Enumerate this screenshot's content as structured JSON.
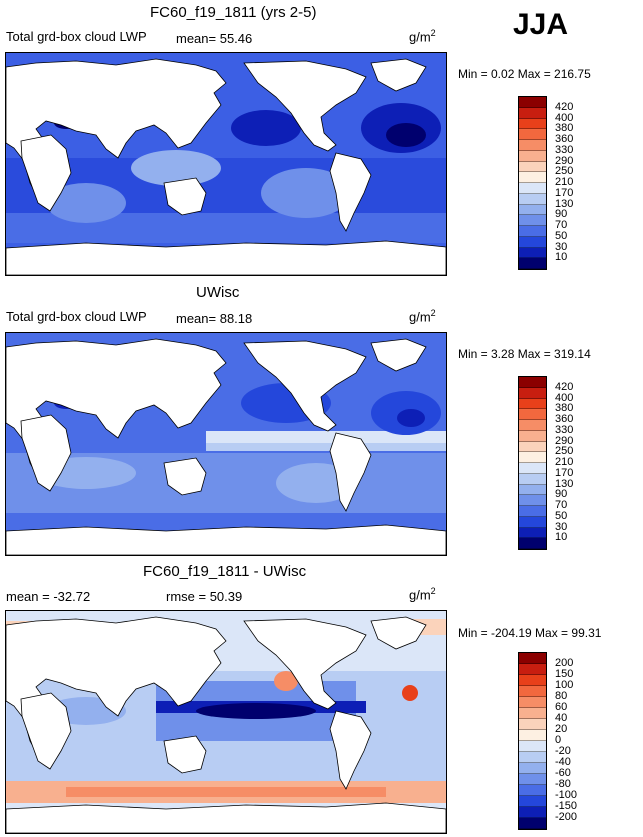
{
  "season": "JJA",
  "units": "g/m",
  "units_exp": "2",
  "panels": [
    {
      "title": "FC60_f19_1811 (yrs 2-5)",
      "subtitle": "Total grd-box cloud LWP",
      "mean_text": "mean=   55.46",
      "stats": "Min =     0.02 Max =  216.75",
      "levels": [
        "420",
        "400",
        "380",
        "360",
        "330",
        "290",
        "250",
        "210",
        "170",
        "130",
        "90",
        "70",
        "50",
        "30",
        "10"
      ],
      "colors": [
        "#8b0000",
        "#c81e10",
        "#e8401a",
        "#f2683e",
        "#f68d66",
        "#f8b08f",
        "#fbd3bb",
        "#fdf0e2",
        "#dbe6f8",
        "#b8cdf3",
        "#93b0ee",
        "#6f90ea",
        "#4a6de6",
        "#2447db",
        "#0d1fb6",
        "#00006e"
      ]
    },
    {
      "title": "UWisc",
      "subtitle": "Total grd-box cloud LWP",
      "mean_text": "mean=   88.18",
      "stats": "Min =     3.28 Max =  319.14",
      "levels": [
        "420",
        "400",
        "380",
        "360",
        "330",
        "290",
        "250",
        "210",
        "170",
        "130",
        "90",
        "70",
        "50",
        "30",
        "10"
      ],
      "colors": [
        "#8b0000",
        "#c81e10",
        "#e8401a",
        "#f2683e",
        "#f68d66",
        "#f8b08f",
        "#fbd3bb",
        "#fdf0e2",
        "#dbe6f8",
        "#b8cdf3",
        "#93b0ee",
        "#6f90ea",
        "#4a6de6",
        "#2447db",
        "#0d1fb6",
        "#00006e"
      ]
    },
    {
      "title": "FC60_f19_1811 - UWisc",
      "subtitle": "mean =  -32.72",
      "rmse_text": "rmse =   50.39",
      "stats": "Min =  -204.19 Max =   99.31",
      "levels": [
        "200",
        "150",
        "100",
        "80",
        "60",
        "40",
        "20",
        "0",
        "-20",
        "-40",
        "-60",
        "-80",
        "-100",
        "-150",
        "-200"
      ],
      "colors": [
        "#8b0000",
        "#c81e10",
        "#e8401a",
        "#f2683e",
        "#f68d66",
        "#f8b08f",
        "#fbd3bb",
        "#fdf0e2",
        "#dbe6f8",
        "#b8cdf3",
        "#93b0ee",
        "#6f90ea",
        "#4a6de6",
        "#2447db",
        "#0d1fb6",
        "#00006e"
      ]
    }
  ],
  "chart_data": [
    {
      "type": "heatmap",
      "title": "FC60_f19_1811 (yrs 2-5)",
      "variable": "Total grd-box cloud LWP",
      "units": "g/m2",
      "mean": 55.46,
      "min": 0.02,
      "max": 216.75,
      "contour_levels": [
        10,
        30,
        50,
        70,
        90,
        130,
        170,
        210,
        250,
        290,
        330,
        360,
        380,
        400,
        420
      ]
    },
    {
      "type": "heatmap",
      "title": "UWisc",
      "variable": "Total grd-box cloud LWP",
      "units": "g/m2",
      "mean": 88.18,
      "min": 3.28,
      "max": 319.14,
      "contour_levels": [
        10,
        30,
        50,
        70,
        90,
        130,
        170,
        210,
        250,
        290,
        330,
        360,
        380,
        400,
        420
      ]
    },
    {
      "type": "heatmap",
      "title": "FC60_f19_1811 - UWisc",
      "units": "g/m2",
      "mean": -32.72,
      "rmse": 50.39,
      "min": -204.19,
      "max": 99.31,
      "contour_levels": [
        -200,
        -150,
        -100,
        -80,
        -60,
        -40,
        -20,
        0,
        20,
        40,
        60,
        80,
        100,
        150,
        200
      ]
    }
  ]
}
